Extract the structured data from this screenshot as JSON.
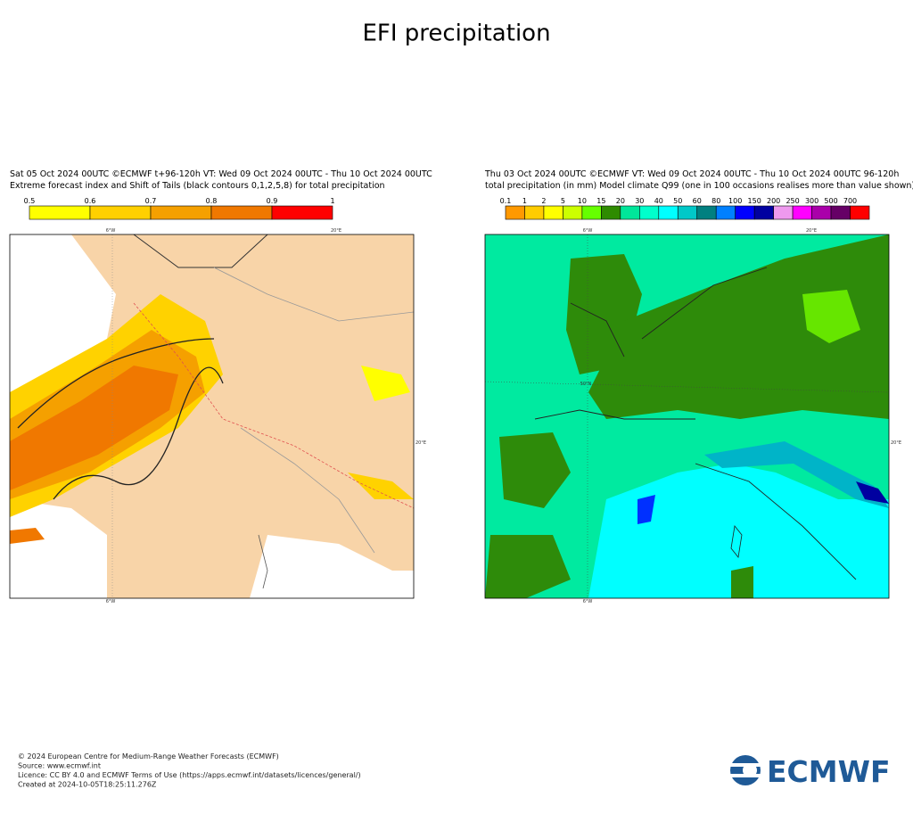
{
  "header": {
    "title": "EFI precipitation"
  },
  "panels": [
    {
      "line1": "Sat 05 Oct 2024 00UTC ©ECMWF t+96-120h  VT: Wed 09 Oct 2024 00UTC - Thu 10 Oct 2024 00UTC",
      "line2": "Extreme forecast index and Shift of Tails (black contours 0,1,2,5,8) for total precipitation",
      "legend_labels": [
        "0.5",
        "0.6",
        "0.7",
        "0.8",
        "0.9",
        "1"
      ],
      "legend_colors": [
        "#ffff00",
        "#ffd000",
        "#f5a000",
        "#f07800",
        "#ff0000"
      ],
      "map_labels": [
        "6°W",
        "20°E",
        "20°E",
        "6°W"
      ]
    },
    {
      "line1": "Thu 03 Oct 2024 00UTC ©ECMWF VT: Wed 09 Oct 2024 00UTC - Thu 10 Oct 2024 00UTC   96-120h",
      "line2": "total precipitation (in mm)  Model climate Q99 (one in 100 occasions realises more than value shown)",
      "legend_labels": [
        "0.1",
        "1",
        "2",
        "5",
        "10",
        "15",
        "20",
        "30",
        "40",
        "50",
        "60",
        "80",
        "100",
        "150",
        "200",
        "250",
        "300",
        "500",
        "700"
      ],
      "legend_colors": [
        "#ff9900",
        "#ffcc00",
        "#ffff00",
        "#ccff00",
        "#66ff00",
        "#2e8b00",
        "#00e69a",
        "#00ffcc",
        "#00ffff",
        "#00c8c8",
        "#008080",
        "#0080ff",
        "#0000ff",
        "#0000a0",
        "#ee99ee",
        "#ff00ff",
        "#aa00aa",
        "#660066",
        "#ff0000"
      ],
      "map_labels": [
        "6°W",
        "20°E",
        "50°N",
        "20°E",
        "6°W"
      ]
    }
  ],
  "footer": {
    "lines": [
      "© 2024 European Centre for Medium-Range Weather Forecasts (ECMWF)",
      "Source: www.ecmwf.int",
      "Licence: CC BY 4.0 and ECMWF Terms of Use (https://apps.ecmwf.int/datasets/licences/general/)",
      "Created at 2024-10-05T18:25:11.276Z"
    ],
    "logo": "ECMWF"
  }
}
